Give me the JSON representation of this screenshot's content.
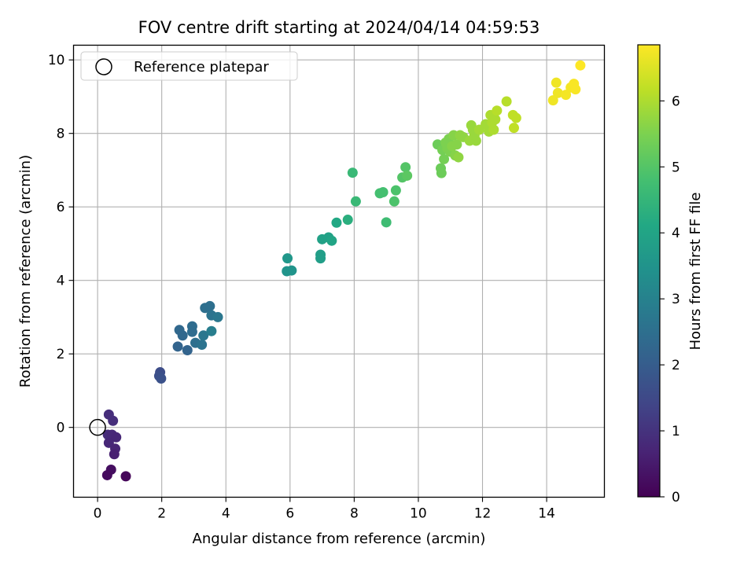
{
  "chart_data": {
    "type": "scatter",
    "title": "FOV centre drift starting at 2024/04/14 04:59:53",
    "xlabel": "Angular distance from reference (arcmin)",
    "ylabel": "Rotation from reference (arcmin)",
    "xlim": [
      -0.75,
      15.8
    ],
    "ylim": [
      -1.9,
      10.4
    ],
    "xticks": [
      0,
      2,
      4,
      6,
      8,
      10,
      12,
      14
    ],
    "yticks": [
      0,
      2,
      4,
      6,
      8,
      10
    ],
    "grid": true,
    "legend": {
      "position": "top-left",
      "entries": [
        "Reference platepar"
      ]
    },
    "reference_point": {
      "x": 0,
      "y": 0
    },
    "colorbar": {
      "label": "Hours from first FF file",
      "colormap": "viridis",
      "range": [
        0,
        6.85
      ],
      "ticks": [
        0,
        1,
        2,
        3,
        4,
        5,
        6
      ]
    },
    "points": [
      {
        "x": 0.35,
        "y": 0.35,
        "c": 0.9
      },
      {
        "x": 0.48,
        "y": 0.18,
        "c": 0.9
      },
      {
        "x": 0.32,
        "y": -0.2,
        "c": 0.85
      },
      {
        "x": 0.45,
        "y": -0.2,
        "c": 0.8
      },
      {
        "x": 0.58,
        "y": -0.27,
        "c": 0.75
      },
      {
        "x": 0.35,
        "y": -0.42,
        "c": 0.75
      },
      {
        "x": 0.55,
        "y": -0.58,
        "c": 0.7
      },
      {
        "x": 0.52,
        "y": -0.73,
        "c": 0.6
      },
      {
        "x": 0.42,
        "y": -1.15,
        "c": 0.25
      },
      {
        "x": 0.3,
        "y": -1.3,
        "c": 0.2
      },
      {
        "x": 0.88,
        "y": -1.33,
        "c": 0.1
      },
      {
        "x": 1.95,
        "y": 1.5,
        "c": 1.6
      },
      {
        "x": 1.92,
        "y": 1.4,
        "c": 1.65
      },
      {
        "x": 1.98,
        "y": 1.33,
        "c": 1.7
      },
      {
        "x": 2.55,
        "y": 2.65,
        "c": 2.3
      },
      {
        "x": 2.65,
        "y": 2.5,
        "c": 2.3
      },
      {
        "x": 2.5,
        "y": 2.2,
        "c": 2.2
      },
      {
        "x": 2.8,
        "y": 2.1,
        "c": 2.2
      },
      {
        "x": 2.95,
        "y": 2.75,
        "c": 2.4
      },
      {
        "x": 2.95,
        "y": 2.6,
        "c": 2.4
      },
      {
        "x": 3.05,
        "y": 2.3,
        "c": 2.5
      },
      {
        "x": 3.25,
        "y": 2.25,
        "c": 2.6
      },
      {
        "x": 3.3,
        "y": 2.5,
        "c": 2.7
      },
      {
        "x": 3.35,
        "y": 3.25,
        "c": 2.5
      },
      {
        "x": 3.5,
        "y": 3.3,
        "c": 2.5
      },
      {
        "x": 3.55,
        "y": 3.05,
        "c": 2.6
      },
      {
        "x": 3.75,
        "y": 3.0,
        "c": 2.7
      },
      {
        "x": 3.55,
        "y": 2.62,
        "c": 2.9
      },
      {
        "x": 5.92,
        "y": 4.6,
        "c": 3.6
      },
      {
        "x": 5.9,
        "y": 4.25,
        "c": 3.5
      },
      {
        "x": 6.05,
        "y": 4.27,
        "c": 3.5
      },
      {
        "x": 6.95,
        "y": 4.7,
        "c": 3.8
      },
      {
        "x": 6.95,
        "y": 4.6,
        "c": 3.8
      },
      {
        "x": 7.0,
        "y": 5.12,
        "c": 3.9
      },
      {
        "x": 7.2,
        "y": 5.17,
        "c": 3.9
      },
      {
        "x": 7.3,
        "y": 5.08,
        "c": 4.0
      },
      {
        "x": 7.45,
        "y": 5.57,
        "c": 4.1
      },
      {
        "x": 7.8,
        "y": 5.65,
        "c": 4.3
      },
      {
        "x": 7.95,
        "y": 6.93,
        "c": 4.6
      },
      {
        "x": 8.05,
        "y": 6.15,
        "c": 4.6
      },
      {
        "x": 8.8,
        "y": 6.37,
        "c": 4.8
      },
      {
        "x": 8.9,
        "y": 6.4,
        "c": 4.8
      },
      {
        "x": 9.0,
        "y": 5.58,
        "c": 4.7
      },
      {
        "x": 9.25,
        "y": 6.15,
        "c": 4.9
      },
      {
        "x": 9.3,
        "y": 6.45,
        "c": 4.9
      },
      {
        "x": 9.5,
        "y": 6.8,
        "c": 5.0
      },
      {
        "x": 9.6,
        "y": 7.08,
        "c": 5.0
      },
      {
        "x": 9.65,
        "y": 6.85,
        "c": 5.1
      },
      {
        "x": 10.6,
        "y": 7.7,
        "c": 5.3
      },
      {
        "x": 10.7,
        "y": 7.05,
        "c": 5.3
      },
      {
        "x": 10.72,
        "y": 6.92,
        "c": 5.3
      },
      {
        "x": 10.75,
        "y": 7.55,
        "c": 5.4
      },
      {
        "x": 10.8,
        "y": 7.3,
        "c": 5.4
      },
      {
        "x": 10.85,
        "y": 7.75,
        "c": 5.5
      },
      {
        "x": 10.9,
        "y": 7.6,
        "c": 5.5
      },
      {
        "x": 10.95,
        "y": 7.85,
        "c": 5.5
      },
      {
        "x": 11.0,
        "y": 7.5,
        "c": 5.5
      },
      {
        "x": 11.05,
        "y": 7.65,
        "c": 5.6
      },
      {
        "x": 11.1,
        "y": 7.95,
        "c": 5.6
      },
      {
        "x": 11.15,
        "y": 7.4,
        "c": 5.6
      },
      {
        "x": 11.2,
        "y": 7.7,
        "c": 5.6
      },
      {
        "x": 11.25,
        "y": 7.35,
        "c": 5.7
      },
      {
        "x": 11.3,
        "y": 7.95,
        "c": 5.7
      },
      {
        "x": 11.4,
        "y": 7.9,
        "c": 5.7
      },
      {
        "x": 11.6,
        "y": 7.8,
        "c": 5.8
      },
      {
        "x": 11.65,
        "y": 8.22,
        "c": 5.8
      },
      {
        "x": 11.7,
        "y": 8.1,
        "c": 5.8
      },
      {
        "x": 11.8,
        "y": 7.8,
        "c": 5.8
      },
      {
        "x": 11.75,
        "y": 7.95,
        "c": 5.8
      },
      {
        "x": 11.9,
        "y": 8.1,
        "c": 5.9
      },
      {
        "x": 12.1,
        "y": 8.25,
        "c": 5.9
      },
      {
        "x": 12.2,
        "y": 8.05,
        "c": 5.9
      },
      {
        "x": 12.25,
        "y": 8.5,
        "c": 6.0
      },
      {
        "x": 12.3,
        "y": 8.3,
        "c": 6.0
      },
      {
        "x": 12.35,
        "y": 8.1,
        "c": 6.0
      },
      {
        "x": 12.4,
        "y": 8.38,
        "c": 6.0
      },
      {
        "x": 12.45,
        "y": 8.62,
        "c": 6.1
      },
      {
        "x": 12.75,
        "y": 8.87,
        "c": 6.1
      },
      {
        "x": 12.95,
        "y": 8.5,
        "c": 6.2
      },
      {
        "x": 13.05,
        "y": 8.42,
        "c": 6.2
      },
      {
        "x": 12.98,
        "y": 8.15,
        "c": 6.2
      },
      {
        "x": 14.2,
        "y": 8.9,
        "c": 6.7
      },
      {
        "x": 14.3,
        "y": 9.38,
        "c": 6.7
      },
      {
        "x": 14.35,
        "y": 9.1,
        "c": 6.7
      },
      {
        "x": 14.6,
        "y": 9.05,
        "c": 6.75
      },
      {
        "x": 14.75,
        "y": 9.25,
        "c": 6.75
      },
      {
        "x": 14.85,
        "y": 9.35,
        "c": 6.8
      },
      {
        "x": 14.9,
        "y": 9.2,
        "c": 6.8
      },
      {
        "x": 15.05,
        "y": 9.85,
        "c": 6.85
      }
    ]
  }
}
